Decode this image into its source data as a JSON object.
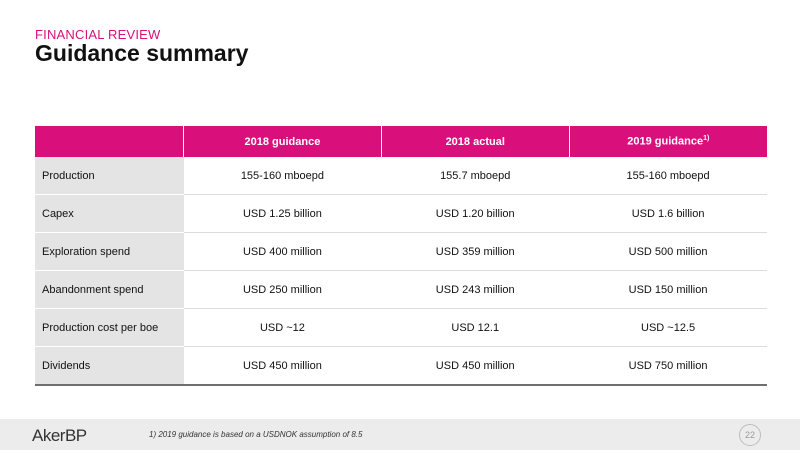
{
  "header": {
    "kicker": "FINANCIAL REVIEW",
    "title": "Guidance summary"
  },
  "table": {
    "columns": [
      "",
      "2018 guidance",
      "2018 actual",
      "2019 guidance"
    ],
    "column_3_footnote_mark": "1)",
    "rows": [
      {
        "label": "Production",
        "values": [
          "155-160 mboepd",
          "155.7 mboepd",
          "155-160 mboepd"
        ]
      },
      {
        "label": "Capex",
        "values": [
          "USD 1.25 billion",
          "USD 1.20 billion",
          "USD 1.6 billion"
        ]
      },
      {
        "label": "Exploration spend",
        "values": [
          "USD 400 million",
          "USD 359 million",
          "USD 500 million"
        ]
      },
      {
        "label": "Abandonment spend",
        "values": [
          "USD 250 million",
          "USD 243 million",
          "USD 150 million"
        ]
      },
      {
        "label": "Production cost per boe",
        "values": [
          "USD ~12",
          "USD 12.1",
          "USD ~12.5"
        ]
      },
      {
        "label": "Dividends",
        "values": [
          "USD 450 million",
          "USD 450 million",
          "USD 750 million"
        ]
      }
    ]
  },
  "footer": {
    "logo": "AkerBP",
    "footnote": "1) 2019 guidance is based on a USDNOK assumption of 8.5",
    "page_number": "22"
  },
  "colors": {
    "accent": "#d9107c",
    "row_header_bg": "#e4e4e4",
    "footer_bg": "#ececec"
  }
}
